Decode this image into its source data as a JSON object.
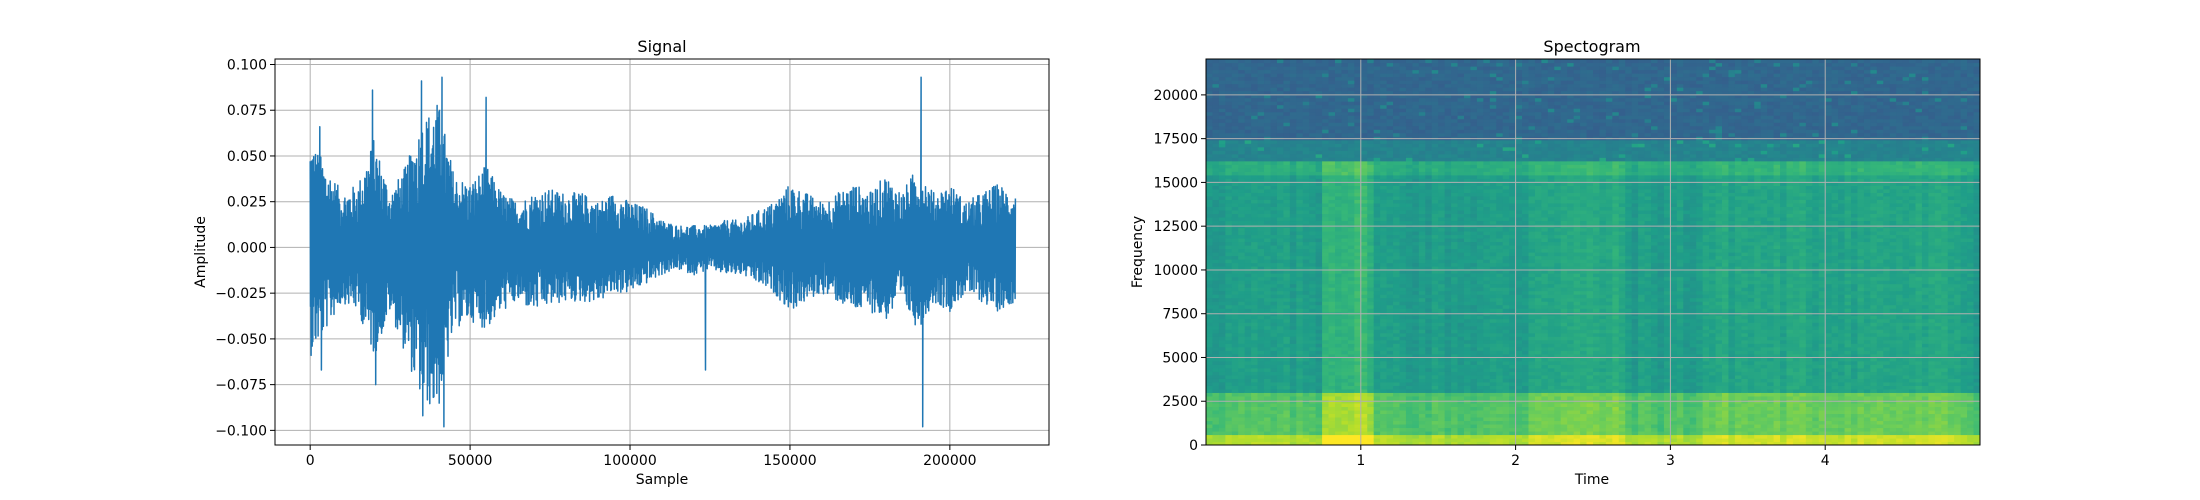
{
  "chart_data": [
    {
      "type": "line",
      "title": "Signal",
      "xlabel": "Sample",
      "ylabel": "Amplitude",
      "xlim": [
        -11000,
        231000
      ],
      "ylim": [
        -0.108,
        0.103
      ],
      "xticks": [
        0,
        50000,
        100000,
        150000,
        200000
      ],
      "xtick_labels": [
        "0",
        "50000",
        "100000",
        "150000",
        "200000"
      ],
      "yticks": [
        -0.1,
        -0.075,
        -0.05,
        -0.025,
        0.0,
        0.025,
        0.05,
        0.075,
        0.1
      ],
      "ytick_labels": [
        "−0.100",
        "−0.075",
        "−0.050",
        "−0.025",
        "0.000",
        "0.025",
        "0.050",
        "0.075",
        "0.100"
      ],
      "grid": true,
      "series_color": "#1f77b4",
      "envelope": {
        "x": [
          0,
          5000,
          10000,
          15000,
          20000,
          25000,
          30000,
          35000,
          40000,
          45000,
          50000,
          55000,
          60000,
          65000,
          70000,
          75000,
          80000,
          85000,
          90000,
          95000,
          100000,
          105000,
          110000,
          115000,
          120000,
          125000,
          130000,
          135000,
          140000,
          145000,
          150000,
          155000,
          160000,
          165000,
          170000,
          175000,
          180000,
          185000,
          190000,
          195000,
          200000,
          205000,
          210000,
          215000,
          220000
        ],
        "max": [
          0.06,
          0.045,
          0.03,
          0.035,
          0.06,
          0.03,
          0.045,
          0.07,
          0.08,
          0.04,
          0.035,
          0.045,
          0.03,
          0.025,
          0.03,
          0.032,
          0.03,
          0.03,
          0.025,
          0.03,
          0.025,
          0.022,
          0.015,
          0.012,
          0.012,
          0.012,
          0.015,
          0.015,
          0.02,
          0.025,
          0.035,
          0.03,
          0.025,
          0.03,
          0.035,
          0.03,
          0.04,
          0.03,
          0.045,
          0.03,
          0.035,
          0.025,
          0.03,
          0.035,
          0.03
        ],
        "min": [
          -0.06,
          -0.045,
          -0.03,
          -0.035,
          -0.06,
          -0.035,
          -0.06,
          -0.085,
          -0.09,
          -0.045,
          -0.04,
          -0.045,
          -0.035,
          -0.03,
          -0.035,
          -0.032,
          -0.03,
          -0.03,
          -0.03,
          -0.025,
          -0.025,
          -0.02,
          -0.015,
          -0.012,
          -0.015,
          -0.012,
          -0.015,
          -0.015,
          -0.02,
          -0.025,
          -0.035,
          -0.03,
          -0.025,
          -0.03,
          -0.035,
          -0.035,
          -0.04,
          -0.03,
          -0.045,
          -0.03,
          -0.035,
          -0.025,
          -0.03,
          -0.035,
          -0.03
        ]
      },
      "peaks": [
        {
          "x": 3000,
          "y": 0.066
        },
        {
          "x": 3500,
          "y": -0.067
        },
        {
          "x": 19500,
          "y": 0.086
        },
        {
          "x": 20500,
          "y": -0.075
        },
        {
          "x": 34800,
          "y": 0.091
        },
        {
          "x": 35200,
          "y": -0.092
        },
        {
          "x": 41200,
          "y": 0.093
        },
        {
          "x": 41800,
          "y": -0.098
        },
        {
          "x": 55000,
          "y": 0.082
        },
        {
          "x": 123600,
          "y": -0.067
        },
        {
          "x": 191000,
          "y": 0.093
        },
        {
          "x": 191500,
          "y": -0.098
        }
      ]
    },
    {
      "type": "heatmap",
      "title": "Spectogram",
      "xlabel": "Time",
      "ylabel": "Frequency",
      "xlim": [
        0,
        5.0
      ],
      "ylim": [
        0,
        22050
      ],
      "xticks": [
        1,
        2,
        3,
        4
      ],
      "xtick_labels": [
        "1",
        "2",
        "3",
        "4"
      ],
      "yticks": [
        0,
        2500,
        5000,
        7500,
        10000,
        12500,
        15000,
        17500,
        20000
      ],
      "ytick_labels": [
        "0",
        "2500",
        "5000",
        "7500",
        "10000",
        "12500",
        "15000",
        "17500",
        "20000"
      ],
      "grid": true,
      "colormap": "viridis",
      "frequency_bands": [
        {
          "from": 0,
          "to": 600,
          "level": 0.88
        },
        {
          "from": 600,
          "to": 3000,
          "level": 0.72
        },
        {
          "from": 3000,
          "to": 15500,
          "level": 0.55
        },
        {
          "from": 15500,
          "to": 16200,
          "level": 0.62
        },
        {
          "from": 16200,
          "to": 17500,
          "level": 0.45
        },
        {
          "from": 17500,
          "to": 22050,
          "level": 0.33
        }
      ],
      "loud_time_spans": [
        {
          "from": 0.75,
          "to": 1.1,
          "boost": 0.16
        },
        {
          "from": 2.1,
          "to": 2.7,
          "boost": 0.07
        },
        {
          "from": 3.2,
          "to": 4.9,
          "boost": 0.05
        }
      ]
    }
  ]
}
